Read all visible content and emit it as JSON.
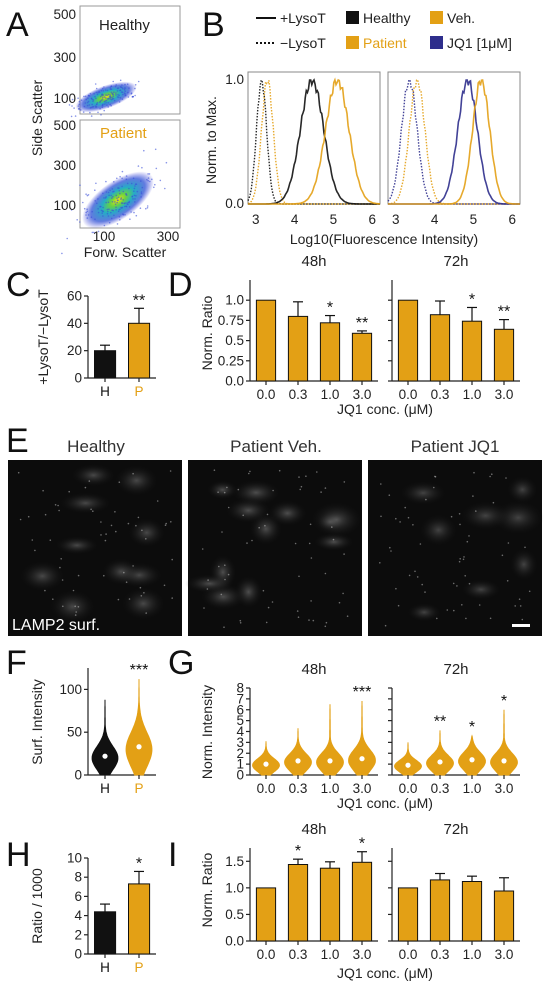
{
  "colors": {
    "healthy": "#111111",
    "patient": "#E3A015",
    "jq1": "#2E2E8C",
    "veh": "#E3A015"
  },
  "panel_letters": [
    "A",
    "B",
    "C",
    "D",
    "E",
    "F",
    "G",
    "H",
    "I"
  ],
  "panelA": {
    "top_label": "Healthy",
    "bottom_label": "Patient",
    "ylabel": "Side Scatter",
    "xlabel": "Forw. Scatter",
    "yticks_top": [
      "500",
      "300",
      "100"
    ],
    "yticks_bottom": [
      "500",
      "300",
      "100"
    ],
    "xticks": [
      "100",
      "300"
    ]
  },
  "panelB": {
    "legend": {
      "plus": "+LysoT",
      "minus": "−LysoT",
      "healthy": "Healthy",
      "patient": "Patient",
      "veh": "Veh.",
      "jq1": "JQ1 [1μM]"
    },
    "ylabel": "Norm. to Max.",
    "xlabel": "Log10(Fluorescence Intensity)",
    "yticks": [
      "1.0",
      "0.0"
    ],
    "xticks": [
      "3",
      "4",
      "5",
      "6"
    ]
  },
  "panelE": {
    "titles": [
      "Healthy",
      "Patient Veh.",
      "Patient JQ1"
    ],
    "caption": "LAMP2 surf."
  },
  "chart_data": [
    {
      "panel": "B-left",
      "type": "line",
      "x_range": [
        2.8,
        6.2
      ],
      "ylim": [
        0,
        1
      ],
      "series": [
        {
          "name": "Healthy",
          "style": "-LysoT",
          "peak_x": 3.15,
          "width": 0.13
        },
        {
          "name": "Patient",
          "style": "-LysoT",
          "peak_x": 3.3,
          "width": 0.15
        },
        {
          "name": "Healthy",
          "style": "+LysoT",
          "peak_x": 4.45,
          "width": 0.3
        },
        {
          "name": "Patient",
          "style": "+LysoT",
          "peak_x": 5.1,
          "width": 0.3
        }
      ]
    },
    {
      "panel": "B-right",
      "type": "line",
      "x_range": [
        2.8,
        6.2
      ],
      "ylim": [
        0,
        1
      ],
      "series": [
        {
          "name": "JQ1 [1μM]",
          "style": "-LysoT",
          "peak_x": 3.35,
          "width": 0.2
        },
        {
          "name": "Veh.",
          "style": "-LysoT",
          "peak_x": 3.55,
          "width": 0.2
        },
        {
          "name": "JQ1 [1μM]",
          "style": "+LysoT",
          "peak_x": 4.85,
          "width": 0.25
        },
        {
          "name": "Veh.",
          "style": "+LysoT",
          "peak_x": 5.2,
          "width": 0.22
        }
      ]
    },
    {
      "panel": "C",
      "type": "bar",
      "ylabel": "+LysoT/−LysoT",
      "ylim": [
        0,
        60
      ],
      "yticks": [
        "0",
        "20",
        "40",
        "60"
      ],
      "categories": [
        "H",
        "P"
      ],
      "values": [
        20,
        40
      ],
      "errors": [
        4,
        11
      ],
      "stars": [
        "",
        "**"
      ]
    },
    {
      "panel": "D-48h",
      "type": "bar",
      "title": "48h",
      "ylabel": "Norm. Ratio",
      "xlabel": "JQ1 conc. (μM)",
      "ylim": [
        0,
        1.25
      ],
      "yticks": [
        "0.0",
        "0.25",
        "0.5",
        "0.75",
        "1.0"
      ],
      "categories": [
        "0.0",
        "0.3",
        "1.0",
        "3.0"
      ],
      "values": [
        1.0,
        0.8,
        0.72,
        0.59
      ],
      "errors": [
        0,
        0.18,
        0.09,
        0.03
      ],
      "stars": [
        "",
        "",
        "*",
        "**"
      ]
    },
    {
      "panel": "D-72h",
      "type": "bar",
      "title": "72h",
      "ylim": [
        0,
        1.25
      ],
      "categories": [
        "0.0",
        "0.3",
        "1.0",
        "3.0"
      ],
      "values": [
        1.0,
        0.82,
        0.74,
        0.64
      ],
      "errors": [
        0,
        0.17,
        0.17,
        0.12
      ],
      "stars": [
        "",
        "",
        "*",
        "**"
      ]
    },
    {
      "panel": "F",
      "type": "violin",
      "ylabel": "Surf. Intensity",
      "ylim": [
        0,
        125
      ],
      "yticks": [
        "0",
        "50",
        "100"
      ],
      "categories": [
        "H",
        "P"
      ],
      "medians": [
        22,
        33
      ],
      "max": [
        88,
        112
      ],
      "stars": [
        "",
        "***"
      ]
    },
    {
      "panel": "G-48h",
      "type": "violin",
      "title": "48h",
      "ylabel": "Norm. Intensity",
      "xlabel": "JQ1 conc. (μM)",
      "ylim": [
        0,
        8
      ],
      "yticks": [
        "0",
        "1",
        "2",
        "3",
        "4",
        "5",
        "6",
        "7",
        "8"
      ],
      "categories": [
        "0.0",
        "0.3",
        "1.0",
        "3.0"
      ],
      "medians": [
        1.0,
        1.3,
        1.3,
        1.5
      ],
      "max": [
        3.1,
        4.3,
        6.5,
        6.8
      ],
      "stars": [
        "",
        "",
        "",
        "***"
      ]
    },
    {
      "panel": "G-72h",
      "type": "violin",
      "title": "72h",
      "ylim": [
        0,
        8
      ],
      "categories": [
        "0.0",
        "0.3",
        "1.0",
        "3.0"
      ],
      "medians": [
        0.9,
        1.2,
        1.4,
        1.3
      ],
      "max": [
        3.0,
        4.1,
        3.6,
        6.0
      ],
      "stars": [
        "",
        "**",
        "*",
        "*"
      ]
    },
    {
      "panel": "H",
      "type": "bar",
      "ylabel": "Ratio / 1000",
      "ylim": [
        0,
        10
      ],
      "yticks": [
        "0",
        "2",
        "4",
        "6",
        "8",
        "10"
      ],
      "categories": [
        "H",
        "P"
      ],
      "values": [
        4.4,
        7.3
      ],
      "errors": [
        0.8,
        1.3
      ],
      "stars": [
        "",
        "*"
      ]
    },
    {
      "panel": "I-48h",
      "type": "bar",
      "title": "48h",
      "ylabel": "Norm. Ratio",
      "xlabel": "JQ1 conc. (μM)",
      "ylim": [
        0,
        1.75
      ],
      "yticks": [
        "0.0",
        "0.5",
        "1.0",
        "1.5"
      ],
      "categories": [
        "0.0",
        "0.3",
        "1.0",
        "3.0"
      ],
      "values": [
        1.0,
        1.44,
        1.37,
        1.48
      ],
      "errors": [
        0,
        0.1,
        0.12,
        0.2
      ],
      "stars": [
        "",
        "*",
        "",
        "*"
      ]
    },
    {
      "panel": "I-72h",
      "type": "bar",
      "title": "72h",
      "ylim": [
        0,
        1.75
      ],
      "categories": [
        "0.0",
        "0.3",
        "1.0",
        "3.0"
      ],
      "values": [
        1.0,
        1.15,
        1.12,
        0.94
      ],
      "errors": [
        0,
        0.12,
        0.1,
        0.25
      ],
      "stars": [
        "",
        "",
        "",
        ""
      ]
    }
  ]
}
